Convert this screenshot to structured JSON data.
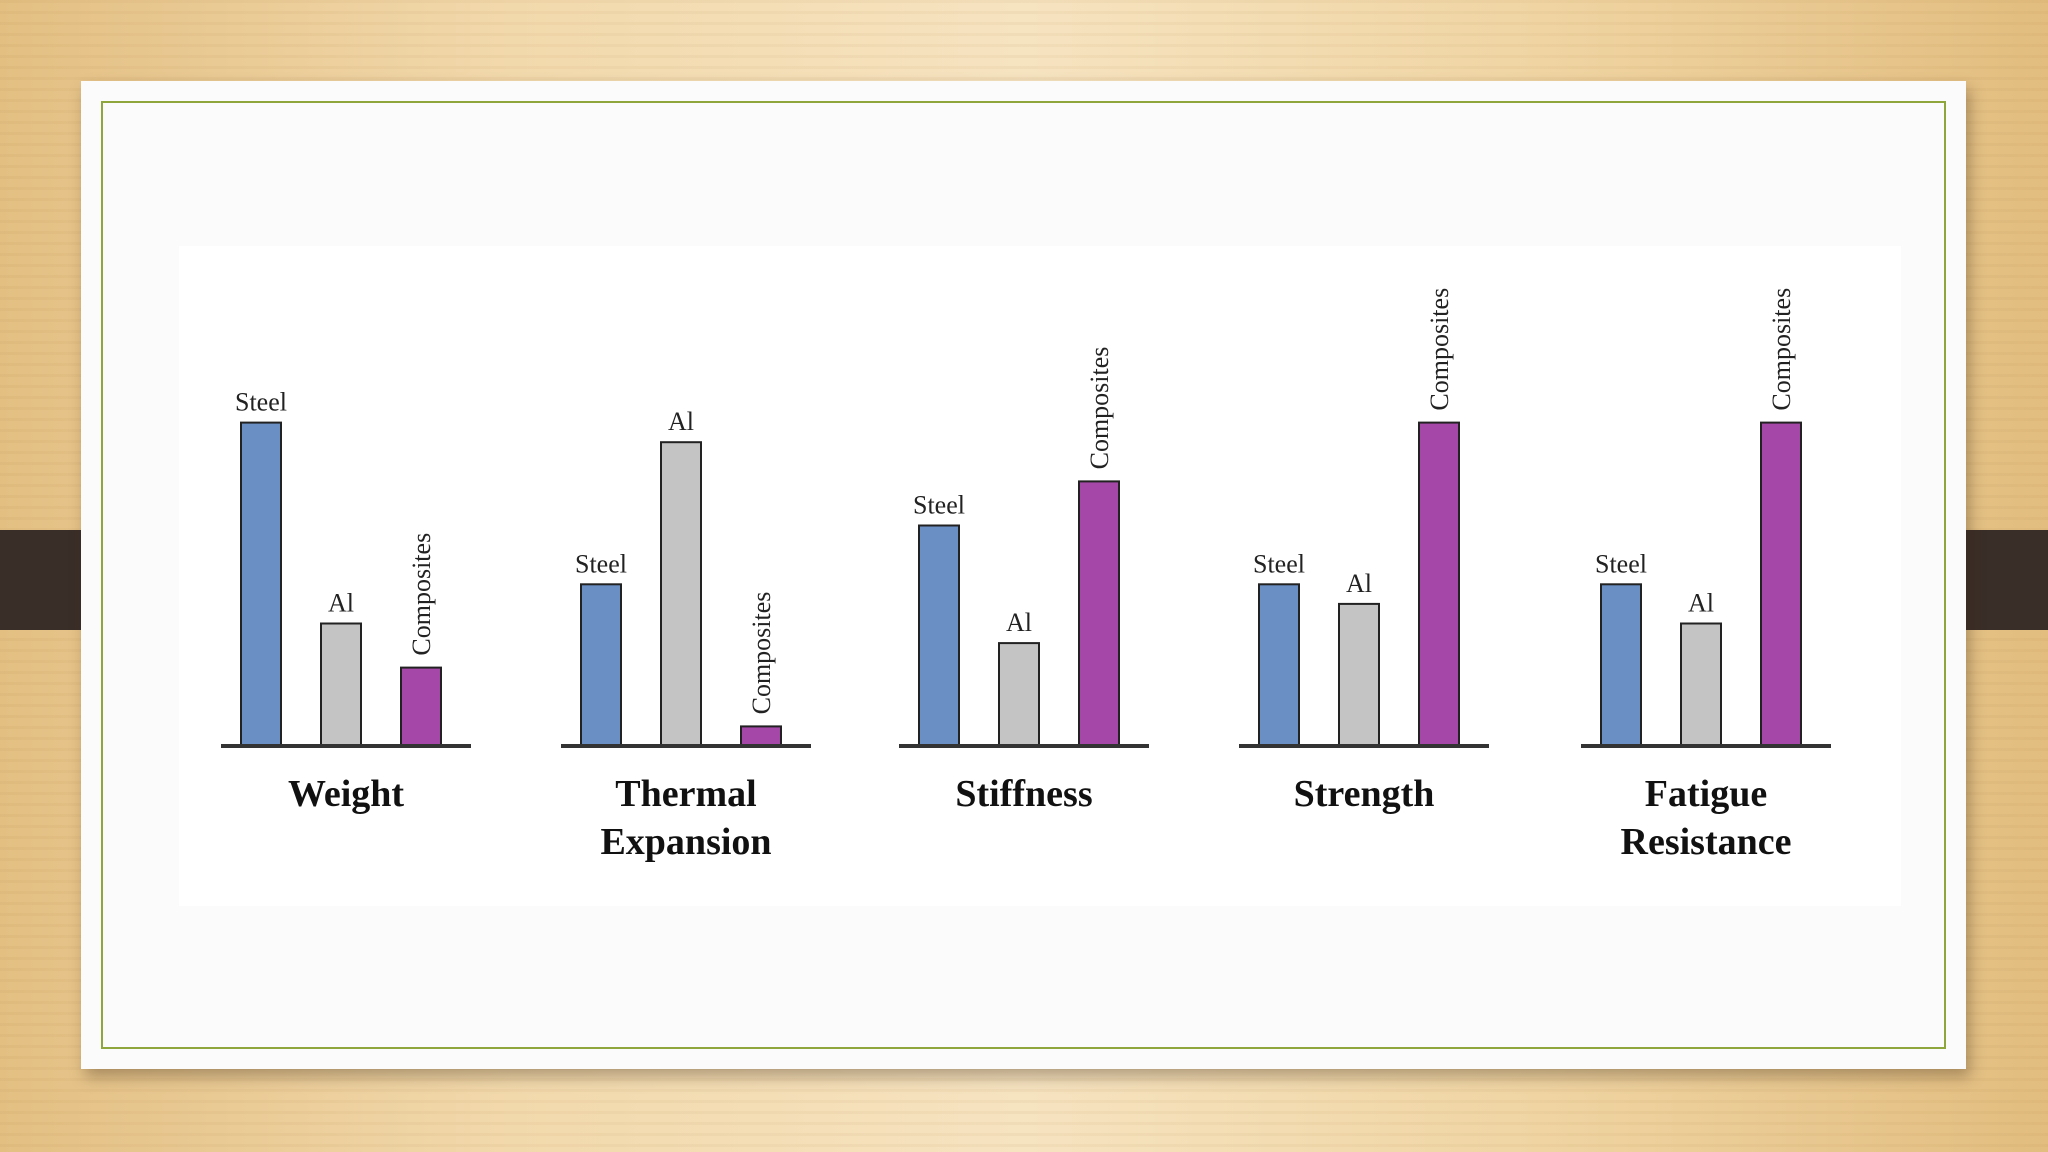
{
  "colors": {
    "Steel": "#6a8fc4",
    "Al": "#c4c4c4",
    "Composites": "#a447a8",
    "axis": "#333333"
  },
  "chart_data": {
    "type": "bar",
    "title": "",
    "xlabel": "",
    "ylabel": "",
    "ylim": [
      0,
      100
    ],
    "grid": false,
    "series_labels_placement": "above-bars",
    "groups": [
      {
        "title_lines": [
          "Weight"
        ],
        "bars": [
          {
            "label": "Steel",
            "value": 66
          },
          {
            "label": "Al",
            "value": 25
          },
          {
            "label": "Composites",
            "value": 16
          }
        ]
      },
      {
        "title_lines": [
          "Thermal",
          "Expansion"
        ],
        "bars": [
          {
            "label": "Steel",
            "value": 33
          },
          {
            "label": "Al",
            "value": 62
          },
          {
            "label": "Composites",
            "value": 4
          }
        ]
      },
      {
        "title_lines": [
          "Stiffness"
        ],
        "bars": [
          {
            "label": "Steel",
            "value": 45
          },
          {
            "label": "Al",
            "value": 21
          },
          {
            "label": "Composites",
            "value": 54
          }
        ]
      },
      {
        "title_lines": [
          "Strength"
        ],
        "bars": [
          {
            "label": "Steel",
            "value": 33
          },
          {
            "label": "Al",
            "value": 29
          },
          {
            "label": "Composites",
            "value": 66
          }
        ]
      },
      {
        "title_lines": [
          "Fatigue",
          "Resistance"
        ],
        "bars": [
          {
            "label": "Steel",
            "value": 33
          },
          {
            "label": "Al",
            "value": 25
          },
          {
            "label": "Composites",
            "value": 66
          }
        ]
      }
    ]
  }
}
